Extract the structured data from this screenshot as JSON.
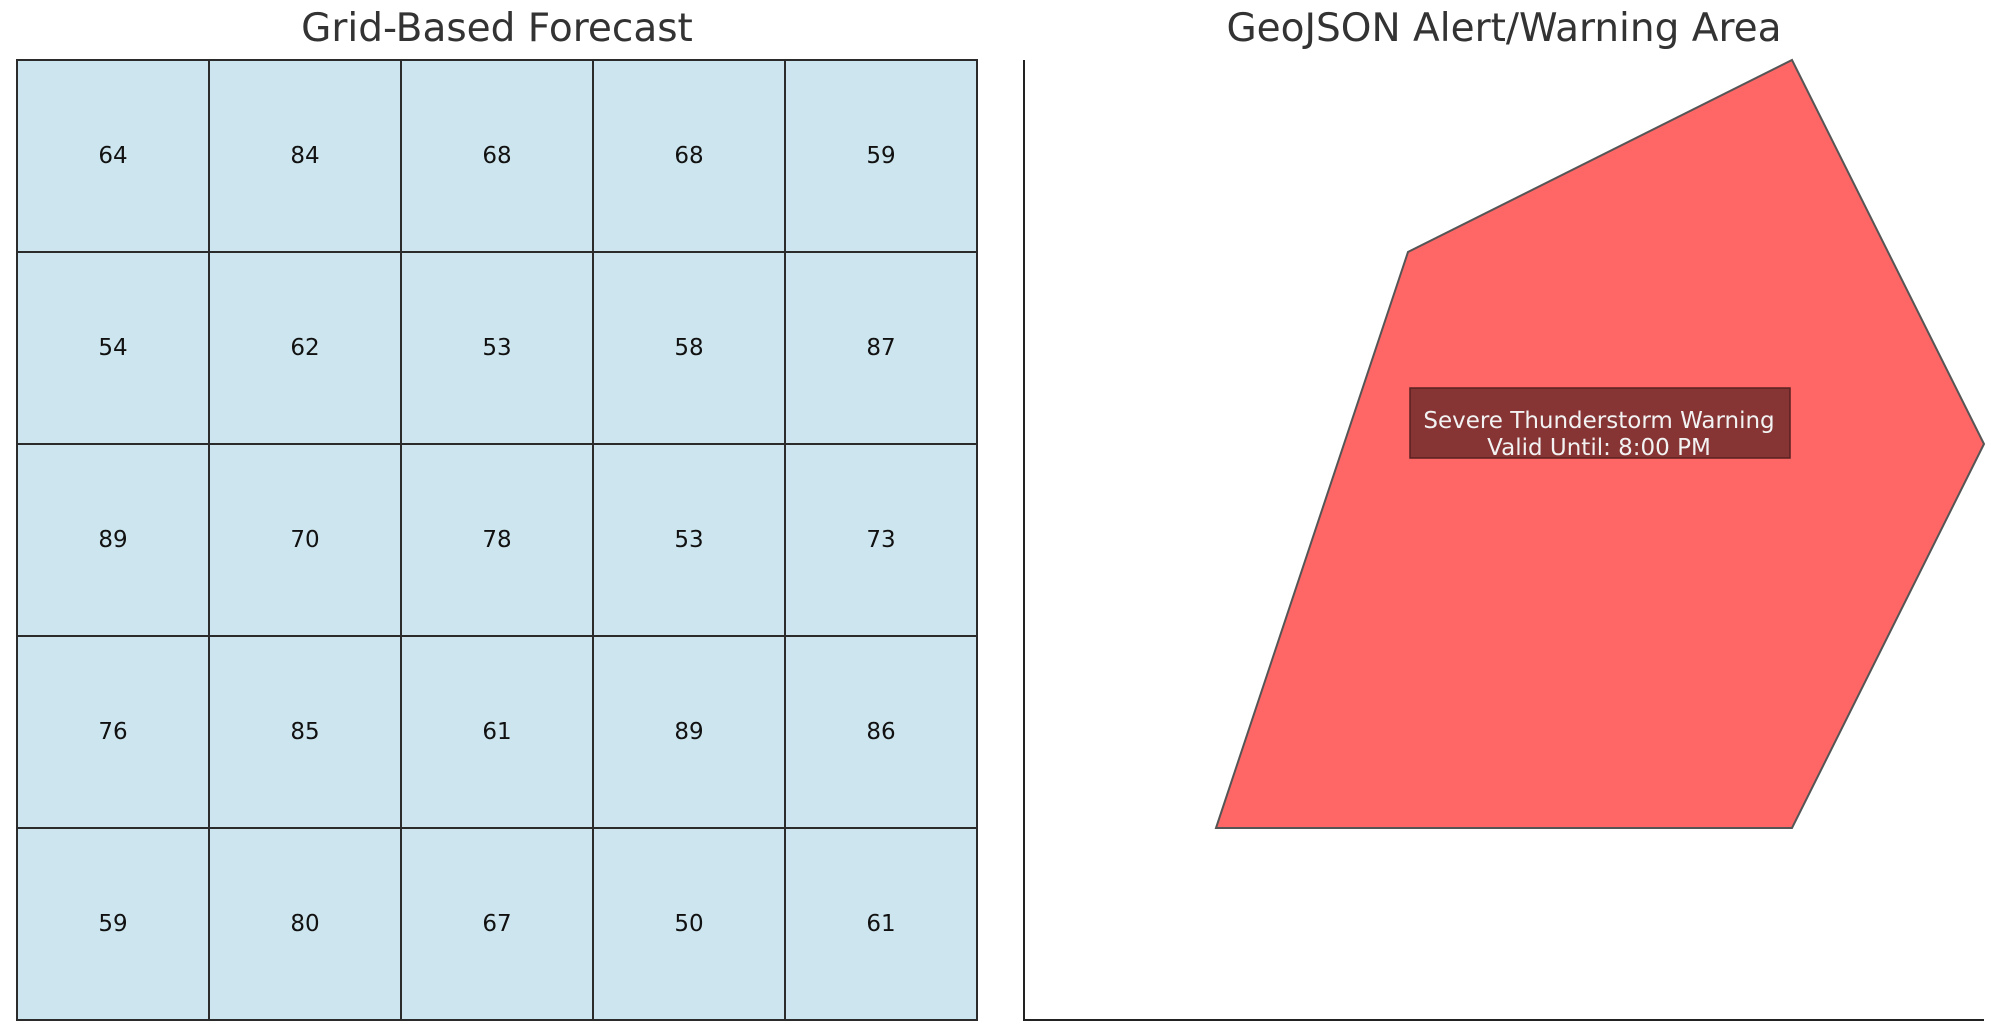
{
  "left_panel": {
    "title": "Grid-Based Forecast"
  },
  "right_panel": {
    "title": "GeoJSON Alert/Warning Area"
  },
  "colors": {
    "grid_cell_fill": "#cde5ee",
    "grid_line": "#2b2b2b",
    "alert_fill": "#ff6666",
    "alert_stroke": "#555555",
    "label_box_fill": "#7a2f2f",
    "label_text": "#f2f2f2",
    "title_text": "#333333"
  },
  "chart_data": [
    {
      "type": "heatmap",
      "title": "Grid-Based Forecast",
      "rows": 5,
      "cols": 5,
      "values": [
        [
          64,
          84,
          68,
          68,
          59
        ],
        [
          54,
          62,
          53,
          58,
          87
        ],
        [
          89,
          70,
          78,
          53,
          73
        ],
        [
          76,
          85,
          61,
          89,
          86
        ],
        [
          59,
          80,
          67,
          50,
          61
        ]
      ]
    },
    {
      "type": "polygon",
      "title": "GeoJSON Alert/Warning Area",
      "xlim": [
        0,
        5
      ],
      "ylim": [
        0,
        5
      ],
      "polygon": [
        [
          1,
          1
        ],
        [
          2,
          4
        ],
        [
          4,
          5
        ],
        [
          5,
          3
        ],
        [
          4,
          1
        ]
      ],
      "label_lines": [
        "Severe Thunderstorm Warning",
        "Valid Until: 8:00 PM"
      ]
    }
  ]
}
